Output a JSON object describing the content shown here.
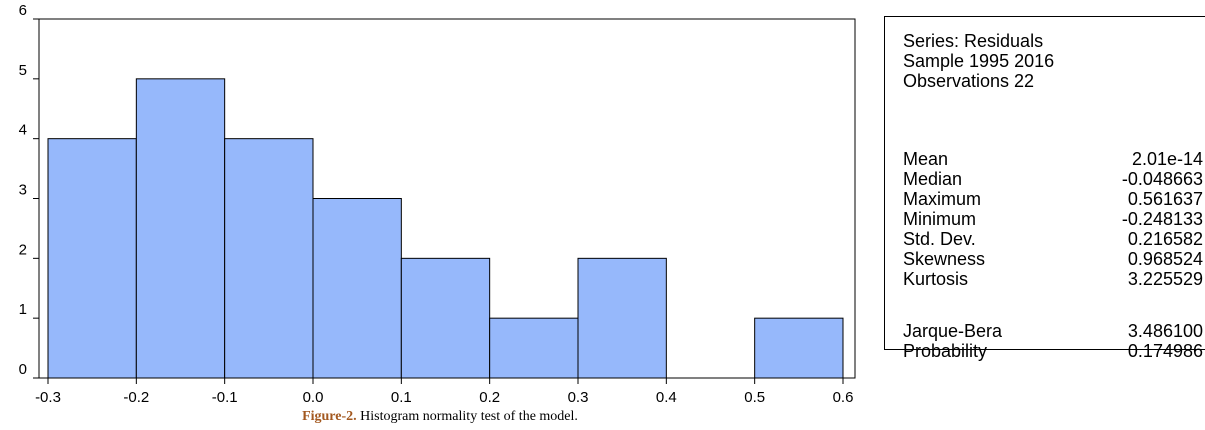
{
  "chart_data": {
    "type": "bar",
    "bins": [
      {
        "from": -0.3,
        "to": -0.2,
        "count": 4
      },
      {
        "from": -0.2,
        "to": -0.1,
        "count": 5
      },
      {
        "from": -0.1,
        "to": 0.0,
        "count": 4
      },
      {
        "from": 0.0,
        "to": 0.1,
        "count": 3
      },
      {
        "from": 0.1,
        "to": 0.2,
        "count": 2
      },
      {
        "from": 0.2,
        "to": 0.3,
        "count": 1
      },
      {
        "from": 0.3,
        "to": 0.4,
        "count": 2
      },
      {
        "from": 0.4,
        "to": 0.5,
        "count": 0
      },
      {
        "from": 0.5,
        "to": 0.6,
        "count": 1
      }
    ],
    "xlim": [
      -0.3,
      0.6
    ],
    "ylim": [
      0,
      6
    ],
    "x_ticks": [
      "-0.3",
      "-0.2",
      "-0.1",
      "0.0",
      "0.1",
      "0.2",
      "0.3",
      "0.4",
      "0.5",
      "0.6"
    ],
    "y_ticks": [
      "0",
      "1",
      "2",
      "3",
      "4",
      "5",
      "6"
    ],
    "bar_color": "#96b8fb",
    "grid": false
  },
  "stats": {
    "series": "Series: Residuals",
    "sample": "Sample 1995 2016",
    "observations": "Observations 22",
    "rows": [
      {
        "label": "Mean",
        "value": "2.01e-14"
      },
      {
        "label": "Median",
        "value": "-0.048663"
      },
      {
        "label": "Maximum",
        "value": "0.561637"
      },
      {
        "label": "Minimum",
        "value": "-0.248133"
      },
      {
        "label": "Std. Dev.",
        "value": "0.216582"
      },
      {
        "label": "Skewness",
        "value": "0.968524"
      },
      {
        "label": "Kurtosis",
        "value": "3.225529"
      }
    ],
    "tests": [
      {
        "label": "Jarque-Bera",
        "value": "3.486100"
      },
      {
        "label": "Probability",
        "value": "0.174986"
      }
    ]
  },
  "caption": {
    "label": "Figure-2.",
    "text": " Histogram normality test of the model."
  }
}
